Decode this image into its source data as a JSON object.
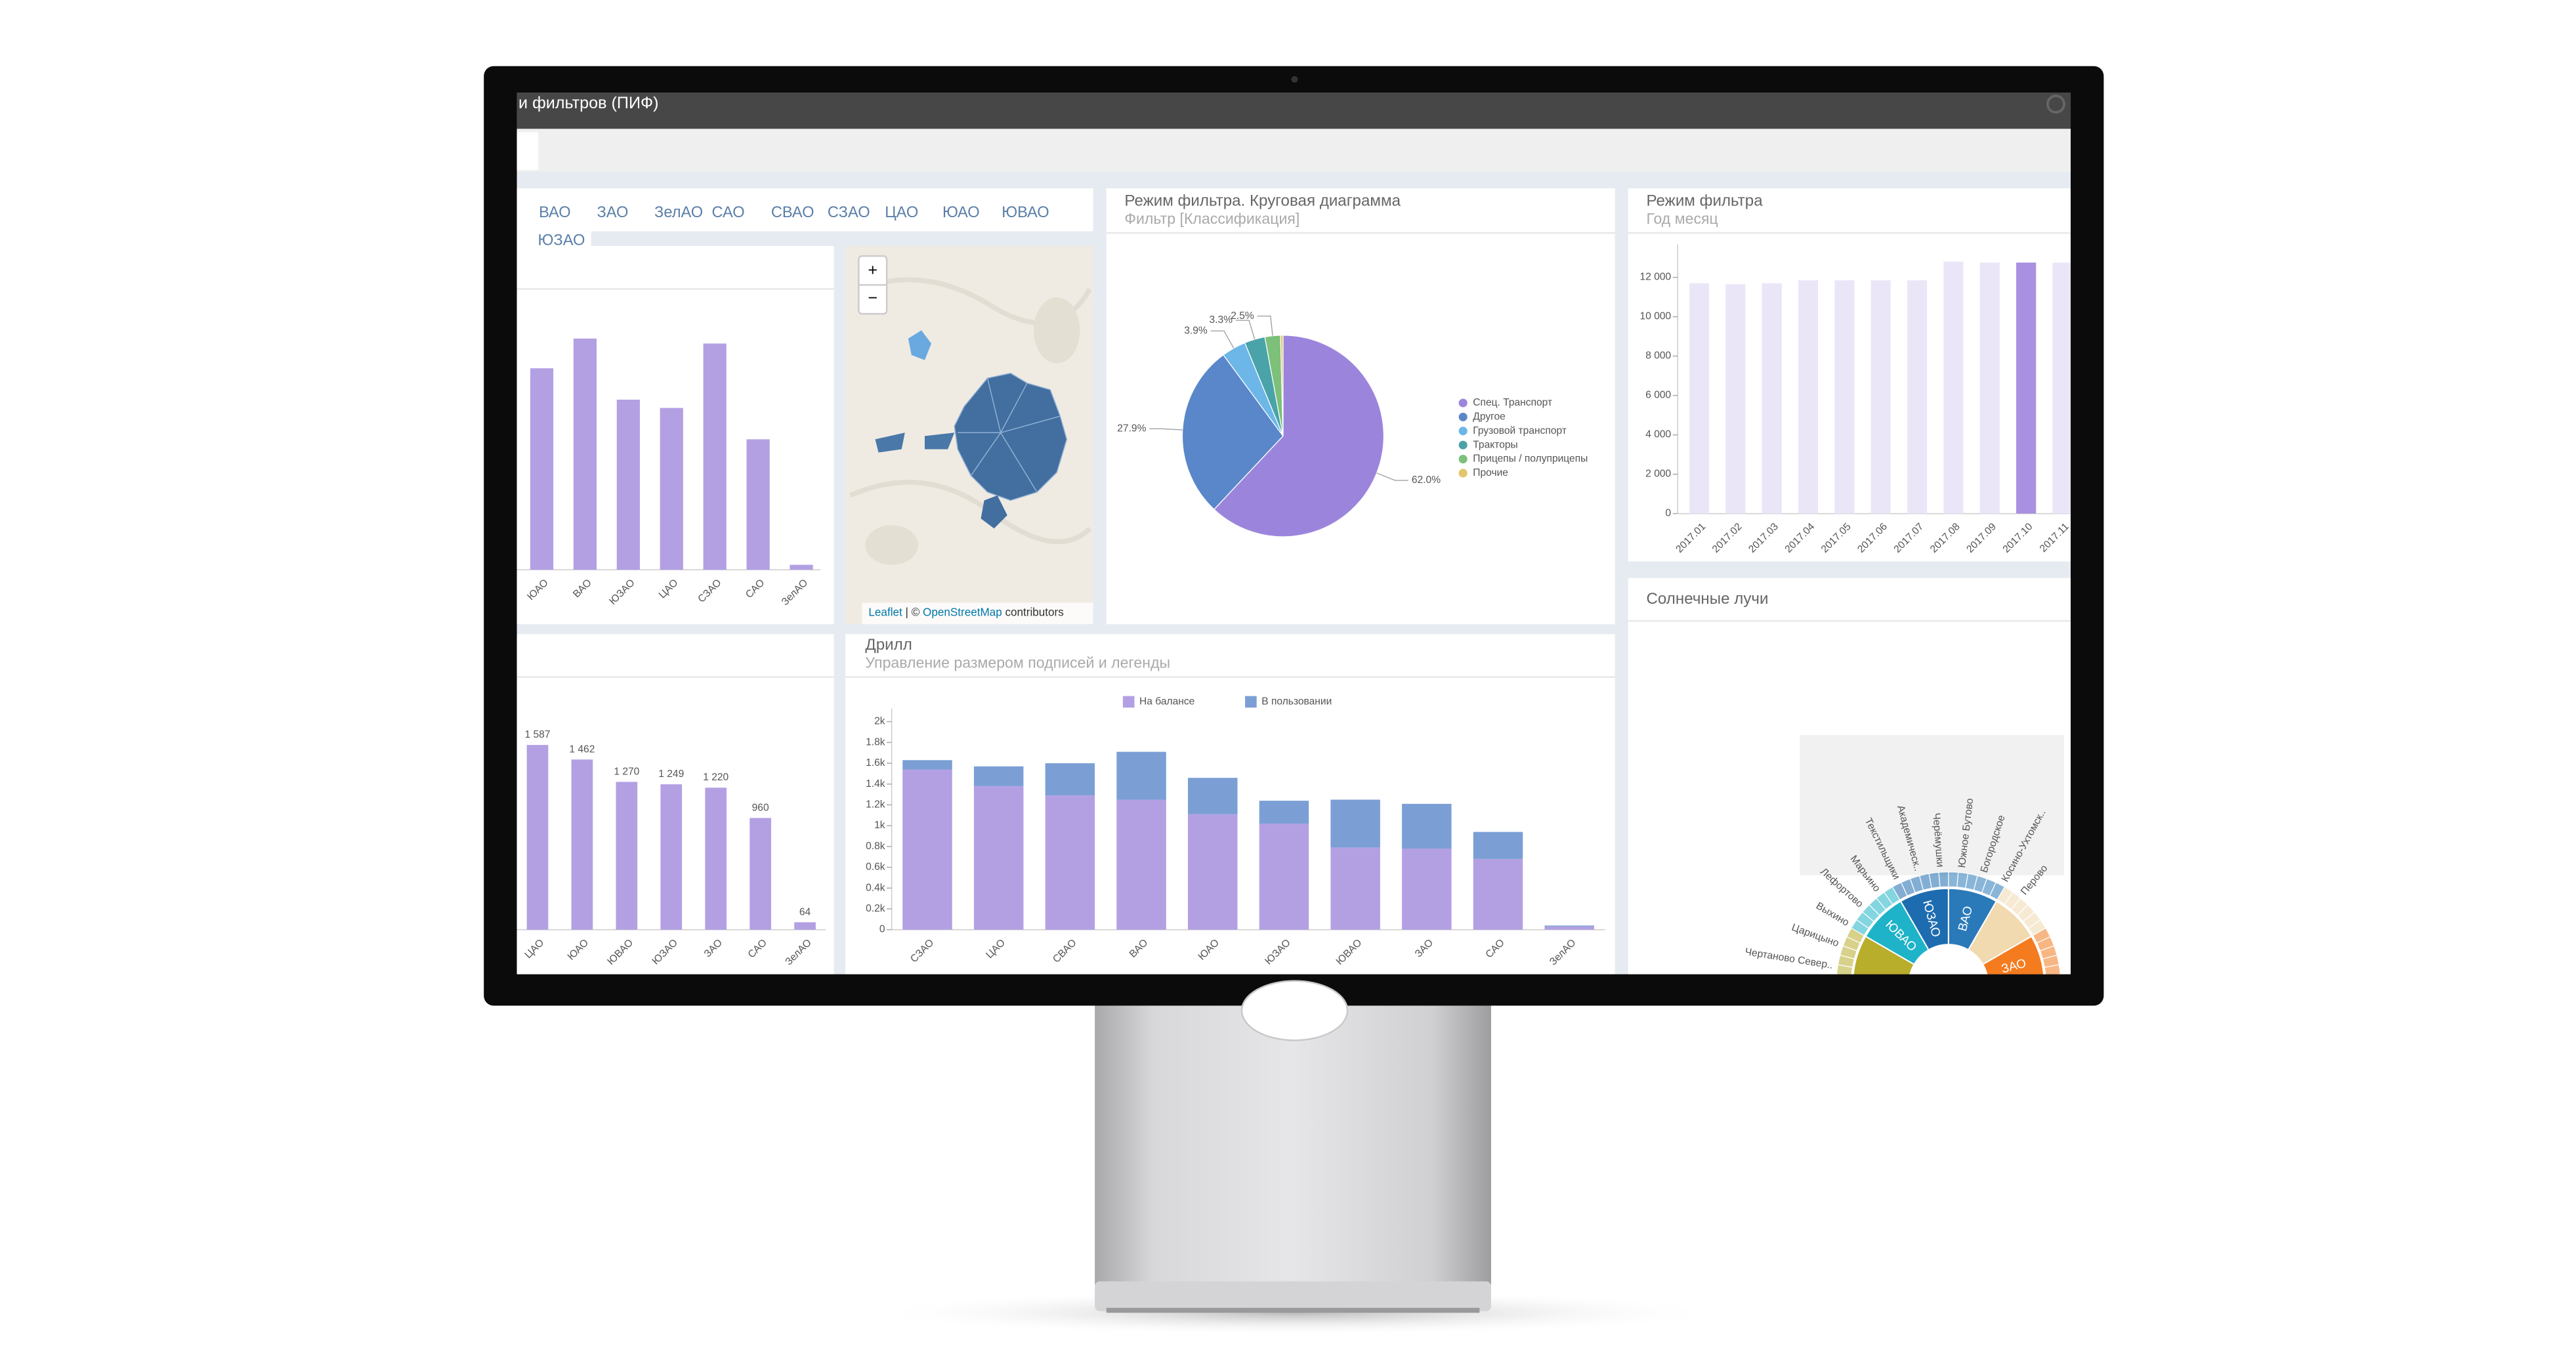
{
  "header": {
    "title": "и фильтров (ПИФ)"
  },
  "filter_chips": [
    "ВАО",
    "ЗАО",
    "ЗелАО",
    "САО",
    "СВАО",
    "СЗАО",
    "ЦАО",
    "ЮАО",
    "ЮВАО",
    "ЮЗАО"
  ],
  "map": {
    "zoom_in": "+",
    "zoom_out": "−",
    "attribution_link1": "Leaflet",
    "attribution_sep": "| ©",
    "attribution_link2": "OpenStreetMap",
    "attribution_tail": "contributors"
  },
  "chart_data": [
    {
      "type": "bar",
      "categories": [
        "ЮАО",
        "ВАО",
        "ЮЗАО",
        "ЦАО",
        "СЗАО",
        "САО",
        "ЗелАО"
      ],
      "values": [
        122,
        140,
        103,
        98,
        137,
        79,
        3
      ],
      "ylim": [
        0,
        150
      ],
      "color": "#b3a0e3"
    },
    {
      "type": "pie",
      "title": "Режим фильтра. Круговая диаграмма",
      "subtitle": "Фильтр [Классификация]",
      "categories": [
        "Спец. Транспорт",
        "Другое",
        "Грузовой транспорт",
        "Тракторы",
        "Прицепы / полуприцепы",
        "Прочие"
      ],
      "values": [
        62.0,
        27.9,
        3.9,
        3.3,
        2.5,
        0.4
      ],
      "value_labels": [
        "62.0%",
        "27.9%",
        "3.9%",
        "3.3%",
        "2.5%",
        null
      ],
      "colors": [
        "#9b85dc",
        "#5a87c9",
        "#6cb7e8",
        "#4aa3a9",
        "#7cc07a",
        "#e3c56b"
      ],
      "legend": "right"
    },
    {
      "type": "bar",
      "title": "Режим фильтра",
      "subtitle": "Год месяц",
      "categories": [
        "2017.01",
        "2017.02",
        "2017.03",
        "2017.04",
        "2017.05",
        "2017.06",
        "2017.07",
        "2017.08",
        "2017.09",
        "2017.10",
        "2017.11"
      ],
      "values": [
        11700,
        11650,
        11700,
        11850,
        11850,
        11850,
        11850,
        12800,
        12750,
        12750,
        12750
      ],
      "colors": [
        "#ebe6f7",
        "#ebe6f7",
        "#ebe6f7",
        "#ebe6f7",
        "#ebe6f7",
        "#ebe6f7",
        "#ebe6f7",
        "#ebe6f7",
        "#ebe6f7",
        "#a990e0",
        "#ebe6f7"
      ],
      "ylim": [
        0,
        13000
      ],
      "yticks": [
        0,
        {
          "value": 2000,
          "label": "2 000"
        },
        {
          "value": 4000,
          "label": "4 000"
        },
        {
          "value": 6000,
          "label": "6 000"
        },
        {
          "value": 8000,
          "label": "8 000"
        },
        {
          "value": 10000,
          "label": "10 000"
        },
        {
          "value": 12000,
          "label": "12 000"
        }
      ]
    },
    {
      "type": "bar",
      "categories": [
        "ЦАО",
        "ЮАО",
        "ЮВАО",
        "ЮЗАО",
        "ЗАО",
        "САО",
        "ЗелАО"
      ],
      "values": [
        1587,
        1462,
        1270,
        1249,
        1220,
        960,
        64
      ],
      "value_labels": [
        "1 587",
        "1 462",
        "1 270",
        "1 249",
        "1 220",
        "960",
        "64"
      ],
      "ylim": [
        0,
        2000
      ],
      "color": "#b3a0e3"
    },
    {
      "type": "bar",
      "title": "Дрилл",
      "subtitle": "Управление размером подписей и легенды",
      "stacked": true,
      "legend": "top",
      "categories": [
        "СЗАО",
        "ЦАО",
        "СВАО",
        "ВАО",
        "ЮАО",
        "ЮЗАО",
        "ЮВАО",
        "ЗАО",
        "САО",
        "ЗелАО"
      ],
      "series": [
        {
          "name": "На балансе",
          "color": "#b3a0e3",
          "values": [
            1540,
            1380,
            1290,
            1250,
            1110,
            1020,
            790,
            780,
            680,
            30
          ]
        },
        {
          "name": "В пользовании",
          "color": "#7b9fd4",
          "values": [
            90,
            190,
            310,
            460,
            350,
            220,
            460,
            430,
            260,
            10
          ]
        }
      ],
      "ylim": [
        0,
        2000
      ],
      "yticks": [
        0,
        {
          "value": 200,
          "label": "0.2k"
        },
        {
          "value": 400,
          "label": "0.4k"
        },
        {
          "value": 600,
          "label": "0.6k"
        },
        {
          "value": 800,
          "label": "0.8k"
        },
        {
          "value": 1000,
          "label": "1k"
        },
        {
          "value": 1200,
          "label": "1.2k"
        },
        {
          "value": 1400,
          "label": "1.4k"
        },
        {
          "value": 1600,
          "label": "1.6k"
        },
        {
          "value": 1800,
          "label": "1.8k"
        },
        {
          "value": 2000,
          "label": "2k"
        }
      ]
    },
    {
      "type": "sunburst",
      "title": "Солнечные лучи",
      "inner": [
        {
          "label": null,
          "color": "#b9ad2c"
        },
        {
          "label": "ЮВАО",
          "color": "#1eb3c8"
        },
        {
          "label": "ЮЗАО",
          "color": "#1e6cb0"
        },
        {
          "label": "ВАО",
          "color": "#2a7ab9"
        },
        {
          "label": null,
          "color": "#f1d9b0"
        },
        {
          "label": "ЗАО",
          "color": "#f47c1f"
        }
      ],
      "outer_labels": [
        "Чертаново Север..",
        "Царицыно",
        "Выхино",
        "Лефортово",
        "Марьино",
        "Текстильщики",
        "Академическ..",
        "Черёмушки",
        "Южное Бутово",
        "Богородское",
        "Косино-Ухтомск..",
        "Перово"
      ]
    }
  ]
}
